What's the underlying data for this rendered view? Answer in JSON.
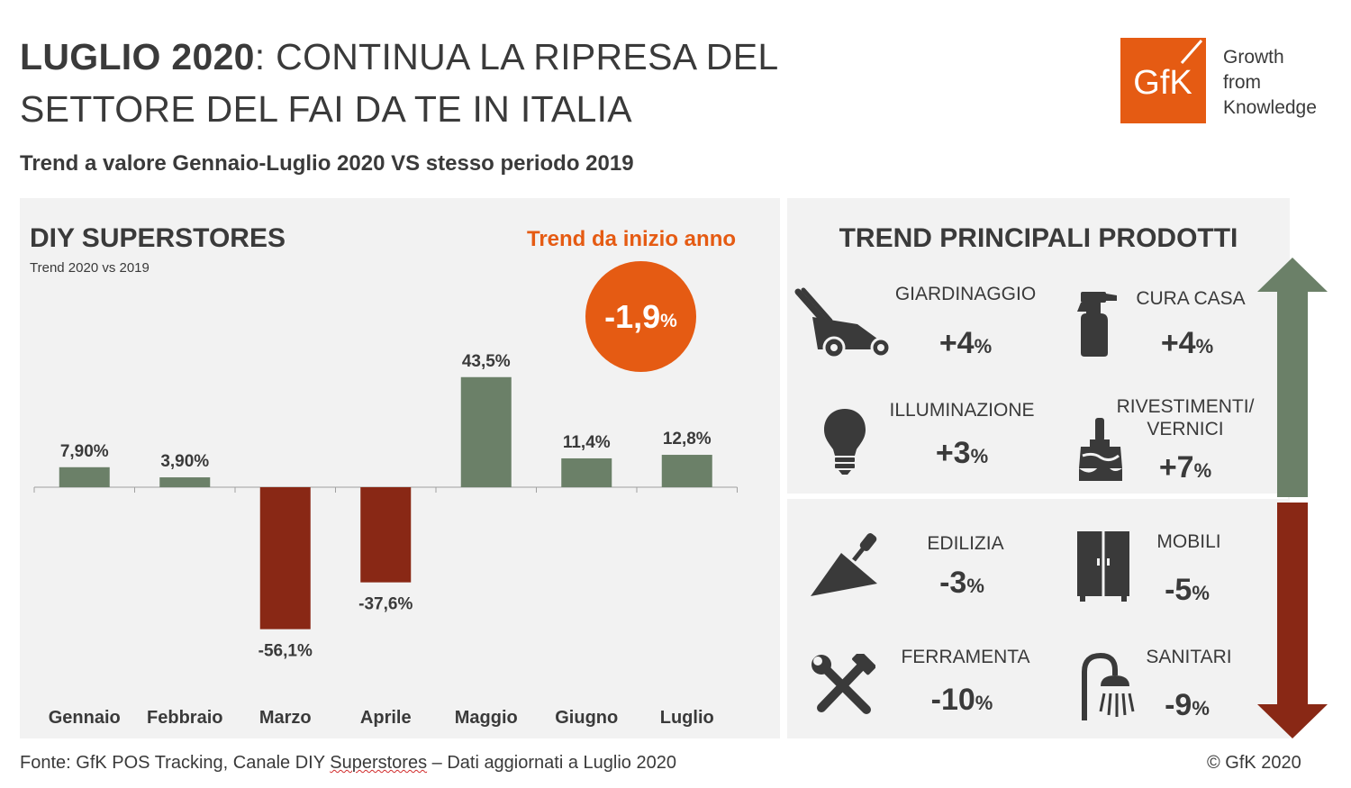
{
  "header": {
    "title_bold": "LUGLIO 2020",
    "title_rest": ": CONTINUA LA RIPRESA DEL",
    "title_line2": "SETTORE DEL FAI DA TE IN ITALIA",
    "subtitle": "Trend a valore Gennaio-Luglio 2020 VS stesso periodo 2019"
  },
  "logo": {
    "mark": "GfK",
    "line1": "Growth",
    "line2": "from",
    "line3": "Knowledge"
  },
  "left_panel": {
    "heading": "DIY SUPERSTORES",
    "subheading": "Trend 2020 vs 2019",
    "ytd_label": "Trend da inizio anno",
    "ytd_value": "-1,9",
    "ytd_unit": "%"
  },
  "chart_data": {
    "type": "bar",
    "title": "DIY SUPERSTORES",
    "subtitle": "Trend 2020 vs 2019",
    "categories": [
      "Gennaio",
      "Febbraio",
      "Marzo",
      "Aprile",
      "Maggio",
      "Giugno",
      "Luglio"
    ],
    "values": [
      7.9,
      3.9,
      -56.1,
      -37.6,
      43.5,
      11.4,
      12.8
    ],
    "data_labels": [
      "7,90%",
      "3,90%",
      "-56,1%",
      "-37,6%",
      "43,5%",
      "11,4%",
      "12,8%"
    ],
    "ylim": [
      -60,
      50
    ],
    "grid": false,
    "colors": {
      "positive": "#6b8068",
      "negative": "#892815"
    }
  },
  "right_panel": {
    "heading": "TREND PRINCIPALI PRODOTTI",
    "arrow_up_color": "#6b8068",
    "arrow_down_color": "#892815",
    "products": [
      {
        "label": "GIARDINAGGIO",
        "value": "+4",
        "unit": "%",
        "icon": "lawn-mower-icon"
      },
      {
        "label": "CURA CASA",
        "value": "+4",
        "unit": "%",
        "icon": "spray-bottle-icon"
      },
      {
        "label": "ILLUMINAZIONE",
        "value": "+3",
        "unit": "%",
        "icon": "light-bulb-icon"
      },
      {
        "label": "RIVESTIMENTI/",
        "label2": "VERNICI",
        "value": "+7",
        "unit": "%",
        "icon": "paint-brush-icon"
      },
      {
        "label": "EDILIZIA",
        "value": "-3",
        "unit": "%",
        "icon": "trowel-icon"
      },
      {
        "label": "MOBILI",
        "value": "-5",
        "unit": "%",
        "icon": "wardrobe-icon"
      },
      {
        "label": "FERRAMENTA",
        "value": "-10",
        "unit": "%",
        "icon": "wrench-hammer-icon"
      },
      {
        "label": "SANITARI",
        "value": "-9",
        "unit": "%",
        "icon": "shower-icon"
      }
    ]
  },
  "footer": {
    "source_prefix": "Fonte: GfK POS Tracking, Canale DIY ",
    "source_squiggle": "Superstores",
    "source_suffix": " – Dati aggiornati a Luglio 2020",
    "copyright": "© GfK 2020"
  },
  "colors": {
    "accent": "#e55b13",
    "panel_bg": "#f2f2f2",
    "text": "#3a3a3a"
  }
}
